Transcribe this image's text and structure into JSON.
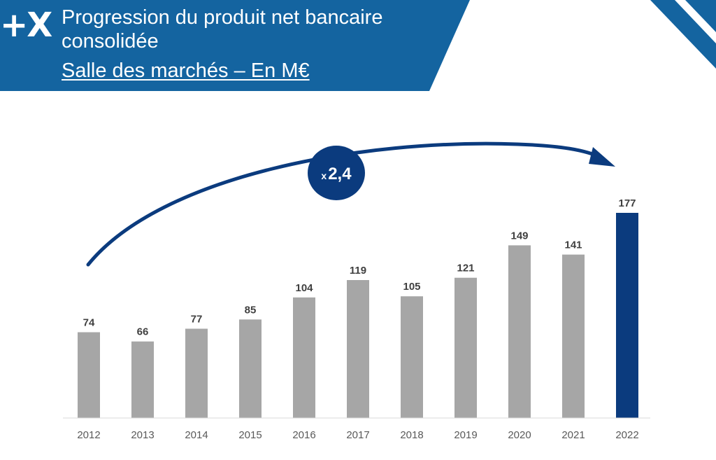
{
  "header": {
    "logo": "+X",
    "title": "Progression du produit net bancaire consolidée",
    "subtitle": "Salle des marchés – En M€"
  },
  "colors": {
    "brand_blue": "#1464a0",
    "dark_blue": "#0b3b7e",
    "bar_gray": "#a6a6a6",
    "bar_highlight": "#0b3b7e"
  },
  "annotation": {
    "prefix": "x",
    "value": "2,4"
  },
  "chart_data": {
    "type": "bar",
    "title": "Progression du produit net bancaire consolidée",
    "subtitle": "Salle des marchés – En M€",
    "categories": [
      "2012",
      "2013",
      "2014",
      "2015",
      "2016",
      "2017",
      "2018",
      "2019",
      "2020",
      "2021",
      "2022"
    ],
    "values": [
      74,
      66,
      77,
      85,
      104,
      119,
      105,
      121,
      149,
      141,
      177
    ],
    "data_labels": [
      "74",
      "66",
      "77",
      "85",
      "104",
      "119",
      "105",
      "121",
      "149",
      "141",
      "177"
    ],
    "highlight_category": "2022",
    "ylim": [
      0,
      177
    ],
    "grid": false,
    "y_axis_visible": false,
    "xlabel": "",
    "ylabel": "",
    "annotation": "x2,4 growth from 2012 to 2022"
  }
}
